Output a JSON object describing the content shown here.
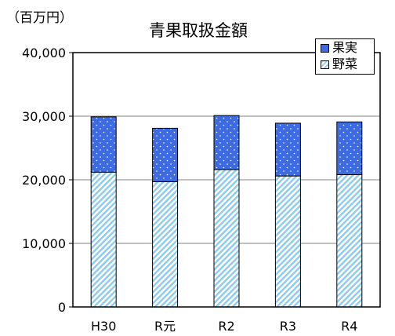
{
  "unit_label": "（百万円）",
  "colors": {
    "fruit": "#3e6ce0",
    "vegetable_stripe": "#8ccbed",
    "dots": "#ffffff",
    "axis": "#000000",
    "grid": "#808080"
  },
  "chart_data": {
    "type": "bar",
    "stacked": true,
    "title": "青果取扱金額",
    "xlabel": "",
    "ylabel": "",
    "categories": [
      "H30",
      "R元",
      "R2",
      "R3",
      "R4"
    ],
    "series": [
      {
        "name": "野菜",
        "values": [
          21200,
          19700,
          21600,
          20600,
          20800
        ]
      },
      {
        "name": "果実",
        "values": [
          8700,
          8400,
          8500,
          8300,
          8300
        ]
      }
    ],
    "ylim": [
      0,
      40000
    ],
    "yticks": [
      "0",
      "10,000",
      "20,000",
      "30,000",
      "40,000"
    ],
    "grid": true,
    "legend_position": "top-right"
  }
}
